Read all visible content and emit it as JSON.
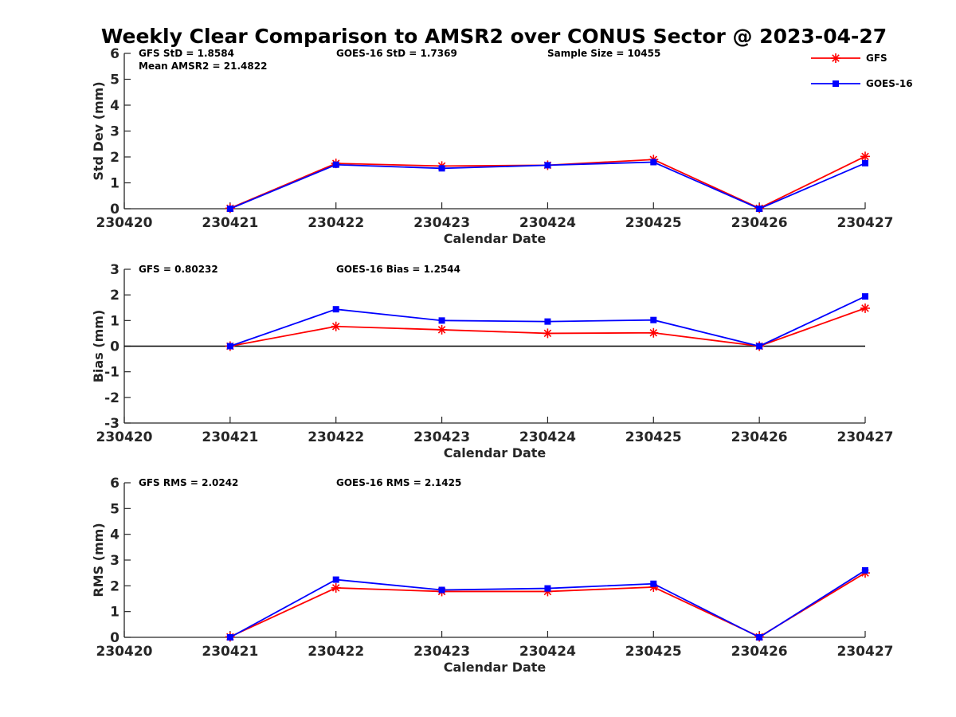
{
  "title": "Weekly Clear Comparison to AMSR2 over CONUS Sector @ 2023-04-27",
  "colors": {
    "GFS": "#ff0000",
    "GOES-16": "#0000ff",
    "zero_line": "#000000"
  },
  "legend": {
    "placement": "top-right",
    "items": [
      "GFS",
      "GOES-16"
    ]
  },
  "chart_data": [
    {
      "type": "line",
      "ylabel": "Std Dev (mm)",
      "xlabel": "Calendar Date",
      "categories": [
        "230420",
        "230421",
        "230422",
        "230423",
        "230424",
        "230425",
        "230426",
        "230427"
      ],
      "ylim": [
        0,
        6
      ],
      "yticks": [
        "0",
        "1",
        "2",
        "3",
        "4",
        "5",
        "6"
      ],
      "zero_line": false,
      "stats": [
        {
          "text": "GFS StD = 1.8584",
          "col": 0,
          "row": 0
        },
        {
          "text": "GOES-16 StD = 1.7369",
          "col": 1,
          "row": 0
        },
        {
          "text": "Sample Size = 10455",
          "col": 2,
          "row": 0
        },
        {
          "text": "Mean AMSR2 = 21.4822",
          "col": 0,
          "row": 1
        }
      ],
      "series": [
        {
          "name": "GFS",
          "marker": "star",
          "x": [
            "230421",
            "230422",
            "230423",
            "230424",
            "230425",
            "230426",
            "230427"
          ],
          "values": [
            0.02,
            1.75,
            1.65,
            1.68,
            1.9,
            0.02,
            2.02
          ]
        },
        {
          "name": "GOES-16",
          "marker": "square",
          "x": [
            "230421",
            "230422",
            "230423",
            "230424",
            "230425",
            "230426",
            "230427"
          ],
          "values": [
            0.0,
            1.7,
            1.56,
            1.68,
            1.8,
            0.0,
            1.76
          ]
        }
      ]
    },
    {
      "type": "line",
      "ylabel": "Bias (mm)",
      "xlabel": "Calendar Date",
      "categories": [
        "230420",
        "230421",
        "230422",
        "230423",
        "230424",
        "230425",
        "230426",
        "230427"
      ],
      "ylim": [
        -3,
        3
      ],
      "yticks": [
        "-3",
        "-2",
        "-1",
        "0",
        "1",
        "2",
        "3"
      ],
      "zero_line": true,
      "stats": [
        {
          "text": "GFS = 0.80232",
          "col": 0,
          "row": 0
        },
        {
          "text": "GOES-16 Bias  = 1.2544",
          "col": 1,
          "row": 0
        }
      ],
      "series": [
        {
          "name": "GFS",
          "marker": "star",
          "x": [
            "230421",
            "230422",
            "230423",
            "230424",
            "230425",
            "230426",
            "230427"
          ],
          "values": [
            0.0,
            0.77,
            0.64,
            0.5,
            0.52,
            0.0,
            1.48
          ]
        },
        {
          "name": "GOES-16",
          "marker": "square",
          "x": [
            "230421",
            "230422",
            "230423",
            "230424",
            "230425",
            "230426",
            "230427"
          ],
          "values": [
            0.0,
            1.44,
            1.0,
            0.96,
            1.02,
            0.0,
            1.94
          ]
        }
      ]
    },
    {
      "type": "line",
      "ylabel": "RMS (mm)",
      "xlabel": "Calendar Date",
      "categories": [
        "230420",
        "230421",
        "230422",
        "230423",
        "230424",
        "230425",
        "230426",
        "230427"
      ],
      "ylim": [
        0,
        6
      ],
      "yticks": [
        "0",
        "1",
        "2",
        "3",
        "4",
        "5",
        "6"
      ],
      "zero_line": false,
      "stats": [
        {
          "text": "GFS RMS = 2.0242",
          "col": 0,
          "row": 0
        },
        {
          "text": "GOES-16 RMS = 2.1425",
          "col": 1,
          "row": 0
        }
      ],
      "series": [
        {
          "name": "GFS",
          "marker": "star",
          "x": [
            "230421",
            "230422",
            "230423",
            "230424",
            "230425",
            "230426",
            "230427"
          ],
          "values": [
            0.02,
            1.92,
            1.78,
            1.78,
            1.95,
            0.02,
            2.5
          ]
        },
        {
          "name": "GOES-16",
          "marker": "square",
          "x": [
            "230421",
            "230422",
            "230423",
            "230424",
            "230425",
            "230426",
            "230427"
          ],
          "values": [
            0.0,
            2.24,
            1.84,
            1.9,
            2.08,
            0.0,
            2.6
          ]
        }
      ]
    }
  ]
}
